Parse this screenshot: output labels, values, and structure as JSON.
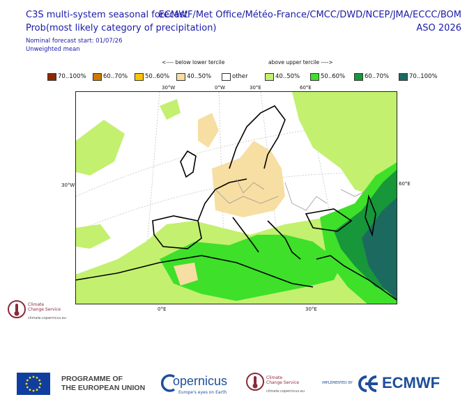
{
  "header": {
    "title_line1": "C3S multi-system seasonal forecast",
    "title_line2": "Prob(most likely category of precipitation)",
    "systems": "ECMWF/Met Office/Météo-France/CMCC/DWD/NCEP/JMA/ECCC/BOM",
    "season": "ASO 2026",
    "start": "Nominal forecast start: 01/07/26",
    "mean": "Unweighted mean"
  },
  "legend": {
    "below_caption": "<---- below lower tercile",
    "above_caption": "above upper tercile ---->",
    "items": [
      {
        "label": "70..100%",
        "color": "#8b2a00"
      },
      {
        "label": "60..70%",
        "color": "#cc7a00"
      },
      {
        "label": "50..60%",
        "color": "#ffc400"
      },
      {
        "label": "40..50%",
        "color": "#f7dea2"
      },
      {
        "label": "other",
        "color": "#ffffff"
      },
      {
        "label": "40..50%",
        "color": "#c3f06f"
      },
      {
        "label": "50..60%",
        "color": "#3ee02a"
      },
      {
        "label": "60..70%",
        "color": "#17963a"
      },
      {
        "label": "70..100%",
        "color": "#1c6a5f"
      }
    ]
  },
  "map": {
    "lon_labels_top": [
      "30°W",
      "0°W",
      "30°E",
      "60°E"
    ],
    "lon_labels_bottom": [
      "0°E",
      "30°E"
    ],
    "lat_label_left": "30°W",
    "lat_label_right": "60°E"
  },
  "logos": {
    "c3s_small_line1": "Climate",
    "c3s_small_line2": "Change Service",
    "c3s_small_url": "climate.copernicus.eu"
  },
  "footer": {
    "programme_line1": "PROGRAMME OF",
    "programme_line2": "THE EUROPEAN UNION",
    "copernicus": "opernicus",
    "copernicus_tagline": "Europe's eyes on Earth",
    "c3s_line1": "Climate",
    "c3s_line2": "Change Service",
    "c3s_url": "climate.copernicus.eu",
    "implemented_by": "IMPLEMENTED BY",
    "ecmwf": "ECMWF"
  }
}
